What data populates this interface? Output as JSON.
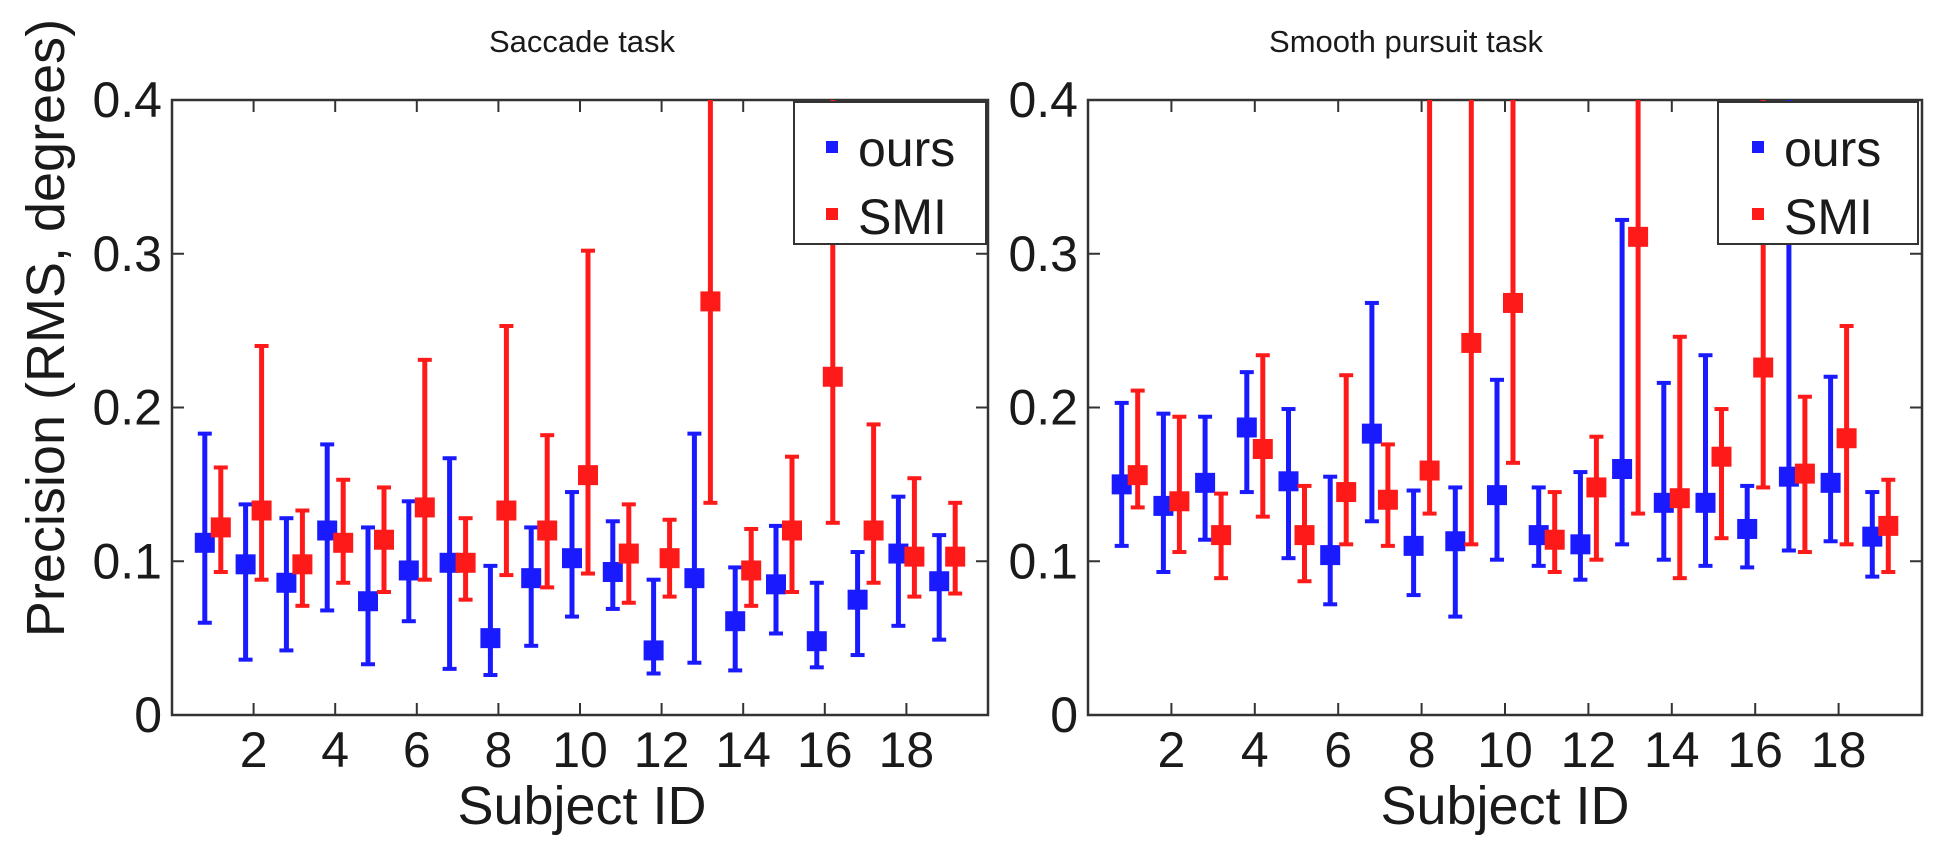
{
  "figure": {
    "ylabel": "Precision (RMS, degrees)",
    "xlabel": "Subject ID",
    "legend": [
      {
        "label": "ours",
        "color": "#1a1aff"
      },
      {
        "label": "SMI",
        "color": "#ff1a1a"
      }
    ]
  },
  "chart_data": [
    {
      "type": "scatter",
      "title": "Saccade task",
      "xlabel": "Subject ID",
      "ylabel": "Precision (RMS, degrees)",
      "xlim": [
        0,
        20
      ],
      "ylim": [
        0,
        0.4
      ],
      "xticks": [
        "2",
        "4",
        "6",
        "8",
        "10",
        "12",
        "14",
        "16",
        "18"
      ],
      "yticks": [
        "0",
        "0.1",
        "0.2",
        "0.3",
        "0.4"
      ],
      "legend_position": "top-right",
      "subjects": [
        1,
        2,
        3,
        4,
        5,
        6,
        7,
        8,
        9,
        10,
        11,
        12,
        13,
        14,
        15,
        16,
        17,
        18,
        19
      ],
      "series": [
        {
          "name": "ours",
          "color": "#1a1aff",
          "values": [
            0.112,
            0.098,
            0.086,
            0.12,
            0.074,
            0.094,
            0.099,
            0.05,
            0.089,
            0.102,
            0.093,
            0.042,
            0.089,
            0.061,
            0.085,
            0.048,
            0.075,
            0.105,
            0.087
          ],
          "lower": [
            0.06,
            0.036,
            0.042,
            0.068,
            0.033,
            0.061,
            0.03,
            0.026,
            0.045,
            0.064,
            0.069,
            0.027,
            0.034,
            0.029,
            0.053,
            0.031,
            0.039,
            0.058,
            0.049
          ],
          "upper": [
            0.183,
            0.137,
            0.128,
            0.176,
            0.122,
            0.139,
            0.167,
            0.097,
            0.122,
            0.145,
            0.126,
            0.088,
            0.183,
            0.096,
            0.123,
            0.086,
            0.106,
            0.142,
            0.117
          ]
        },
        {
          "name": "SMI",
          "color": "#ff1a1a",
          "values": [
            0.122,
            0.133,
            0.098,
            0.112,
            0.114,
            0.135,
            0.099,
            0.133,
            0.12,
            0.156,
            0.105,
            0.102,
            0.269,
            0.094,
            0.12,
            0.22,
            0.12,
            0.103,
            0.103
          ],
          "lower": [
            0.093,
            0.088,
            0.071,
            0.086,
            0.08,
            0.088,
            0.075,
            0.091,
            0.083,
            0.092,
            0.073,
            0.077,
            0.138,
            0.071,
            0.08,
            0.125,
            0.086,
            0.077,
            0.079
          ],
          "upper": [
            0.161,
            0.24,
            0.133,
            0.153,
            0.148,
            0.231,
            0.128,
            0.253,
            0.182,
            0.302,
            0.137,
            0.127,
            0.45,
            0.121,
            0.168,
            0.45,
            0.189,
            0.154,
            0.138
          ]
        }
      ]
    },
    {
      "type": "scatter",
      "title": "Smooth pursuit task",
      "xlabel": "Subject ID",
      "ylabel": "",
      "xlim": [
        0,
        20
      ],
      "ylim": [
        0,
        0.4
      ],
      "xticks": [
        "2",
        "4",
        "6",
        "8",
        "10",
        "12",
        "14",
        "16",
        "18"
      ],
      "yticks": [
        "0",
        "0.1",
        "0.2",
        "0.3",
        "0.4"
      ],
      "legend_position": "top-right",
      "subjects": [
        1,
        2,
        3,
        4,
        5,
        6,
        7,
        8,
        9,
        10,
        11,
        12,
        13,
        14,
        15,
        16,
        17,
        18,
        19
      ],
      "series": [
        {
          "name": "ours",
          "color": "#1a1aff",
          "values": [
            0.15,
            0.136,
            0.151,
            0.187,
            0.152,
            0.104,
            0.183,
            0.11,
            0.113,
            0.143,
            0.117,
            0.111,
            0.16,
            0.138,
            0.138,
            0.121,
            0.155,
            0.151,
            0.116
          ],
          "lower": [
            0.11,
            0.093,
            0.114,
            0.145,
            0.102,
            0.072,
            0.126,
            0.078,
            0.064,
            0.101,
            0.097,
            0.088,
            0.111,
            0.101,
            0.097,
            0.096,
            0.107,
            0.113,
            0.09
          ],
          "upper": [
            0.203,
            0.196,
            0.194,
            0.223,
            0.199,
            0.155,
            0.268,
            0.146,
            0.148,
            0.218,
            0.148,
            0.158,
            0.322,
            0.216,
            0.234,
            0.149,
            0.45,
            0.22,
            0.145
          ]
        },
        {
          "name": "SMI",
          "color": "#ff1a1a",
          "values": [
            0.156,
            0.139,
            0.117,
            0.173,
            0.117,
            0.145,
            0.14,
            0.159,
            0.242,
            0.268,
            0.114,
            0.148,
            0.311,
            0.141,
            0.168,
            0.226,
            0.157,
            0.18,
            0.123
          ],
          "lower": [
            0.135,
            0.106,
            0.089,
            0.129,
            0.087,
            0.111,
            0.11,
            0.131,
            0.111,
            0.164,
            0.093,
            0.101,
            0.131,
            0.089,
            0.115,
            0.148,
            0.106,
            0.111,
            0.093
          ],
          "upper": [
            0.211,
            0.194,
            0.144,
            0.234,
            0.149,
            0.221,
            0.176,
            0.45,
            0.45,
            0.45,
            0.145,
            0.181,
            0.45,
            0.246,
            0.199,
            0.45,
            0.207,
            0.253,
            0.153
          ]
        }
      ]
    }
  ]
}
